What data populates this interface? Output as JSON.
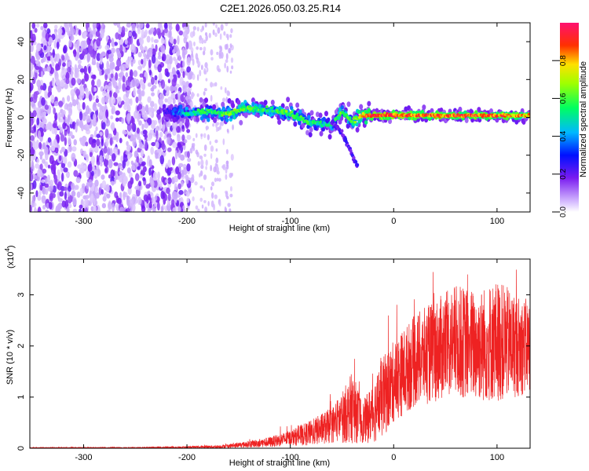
{
  "title": "C2E1.2026.050.03.25.R14",
  "chart_data": [
    {
      "type": "heatmap",
      "xlabel": "Height of straight line (km)",
      "ylabel": "Frequency (Hz)",
      "xlim": [
        -352,
        132
      ],
      "ylim": [
        -50,
        50
      ],
      "xticks": [
        -300,
        -200,
        -100,
        0,
        100
      ],
      "yticks": [
        -40,
        -20,
        0,
        20,
        40
      ],
      "xtick_labels": [
        "-300",
        "-200",
        "-100",
        "0",
        "100"
      ],
      "ytick_labels": [
        "-40",
        "-20",
        "0",
        "20",
        "40"
      ],
      "colorbar": {
        "label": "Normalized spectral amplitude",
        "range": [
          0,
          1
        ],
        "ticks": [
          0,
          0.2,
          0.4,
          0.6,
          0.8
        ],
        "tick_labels": [
          "0.0",
          "0.2",
          "0.4",
          "0.6",
          "0.8"
        ],
        "colormap": [
          "#e8d8ff",
          "#7a1cf0",
          "#0000ff",
          "#00c8ff",
          "#00ff40",
          "#ffff00",
          "#ff3000",
          "#ff1070"
        ]
      },
      "noise_region_x": [
        -352,
        -195
      ],
      "sparse_region_x": [
        -195,
        -155
      ],
      "ridge": {
        "x": [
          -220,
          -200,
          -180,
          -160,
          -140,
          -120,
          -100,
          -80,
          -60,
          -50,
          -40,
          -30,
          -20,
          0,
          20,
          40,
          60,
          80,
          100,
          120,
          132
        ],
        "y": [
          3,
          2,
          3,
          2,
          5,
          4,
          2,
          -3,
          -4,
          3,
          -2,
          1,
          1,
          1,
          1,
          1,
          1,
          1,
          1,
          1,
          1
        ],
        "amplitude": [
          0.3,
          0.5,
          0.55,
          0.6,
          0.6,
          0.55,
          0.6,
          0.55,
          0.5,
          0.6,
          0.6,
          0.75,
          0.9,
          0.9,
          0.85,
          0.85,
          0.85,
          0.85,
          0.85,
          0.8,
          0.8
        ]
      },
      "branch": {
        "x": [
          -60,
          -50,
          -45,
          -40,
          -35
        ],
        "y": [
          -2,
          -8,
          -14,
          -20,
          -26
        ]
      }
    },
    {
      "type": "line",
      "xlabel": "Height of straight line (km)",
      "ylabel": "SNR (10 * v/v)",
      "multiplier_label": "(x10",
      "multiplier_exponent": "4",
      "xlim": [
        -352,
        132
      ],
      "ylim": [
        0,
        3.7
      ],
      "xticks": [
        -300,
        -200,
        -100,
        0,
        100
      ],
      "yticks": [
        0,
        1,
        2,
        3
      ],
      "xtick_labels": [
        "-300",
        "-200",
        "-100",
        "0",
        "100"
      ],
      "ytick_labels": [
        "0",
        "1",
        "2",
        "3"
      ],
      "series": [
        {
          "color": "#ee2222",
          "envelope": {
            "x": [
              -352,
              -250,
              -200,
              -170,
              -150,
              -120,
              -100,
              -80,
              -60,
              -50,
              -40,
              -30,
              -20,
              -10,
              0,
              20,
              40,
              60,
              80,
              100,
              120,
              132
            ],
            "mean": [
              0.01,
              0.01,
              0.02,
              0.03,
              0.06,
              0.12,
              0.2,
              0.3,
              0.45,
              0.6,
              0.8,
              0.5,
              0.7,
              1.0,
              1.3,
              1.7,
              1.9,
              2.1,
              2.0,
              2.1,
              2.0,
              2.0
            ],
            "spread": [
              0.005,
              0.01,
              0.02,
              0.03,
              0.05,
              0.1,
              0.15,
              0.25,
              0.35,
              0.5,
              0.7,
              0.4,
              0.6,
              0.8,
              0.8,
              0.9,
              1.0,
              1.1,
              1.1,
              1.2,
              1.0,
              0.9
            ]
          }
        }
      ]
    }
  ]
}
